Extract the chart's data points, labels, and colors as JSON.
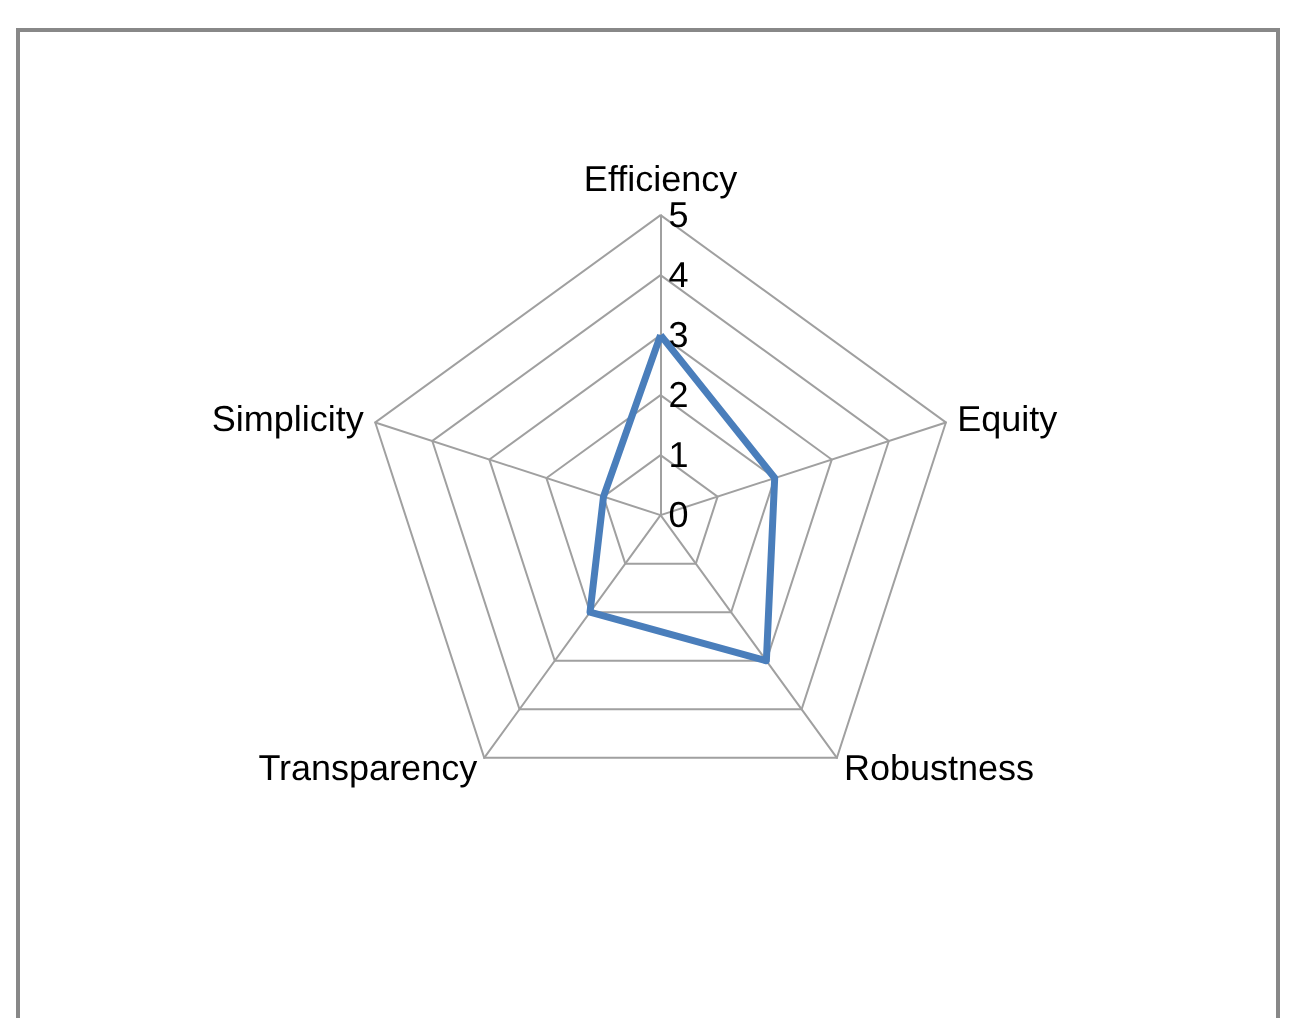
{
  "chart_data": {
    "type": "radar",
    "categories": [
      "Efficiency",
      "Equity",
      "Robustness",
      "Transparency",
      "Simplicity"
    ],
    "series": [
      {
        "color": "#4a7ebb",
        "values": [
          3,
          2,
          3,
          2,
          1
        ]
      }
    ],
    "ylim": [
      0,
      5
    ],
    "yticks": [
      0,
      1,
      2,
      3,
      4,
      5
    ],
    "grid": true,
    "marker": "none",
    "line_style": "solid"
  }
}
